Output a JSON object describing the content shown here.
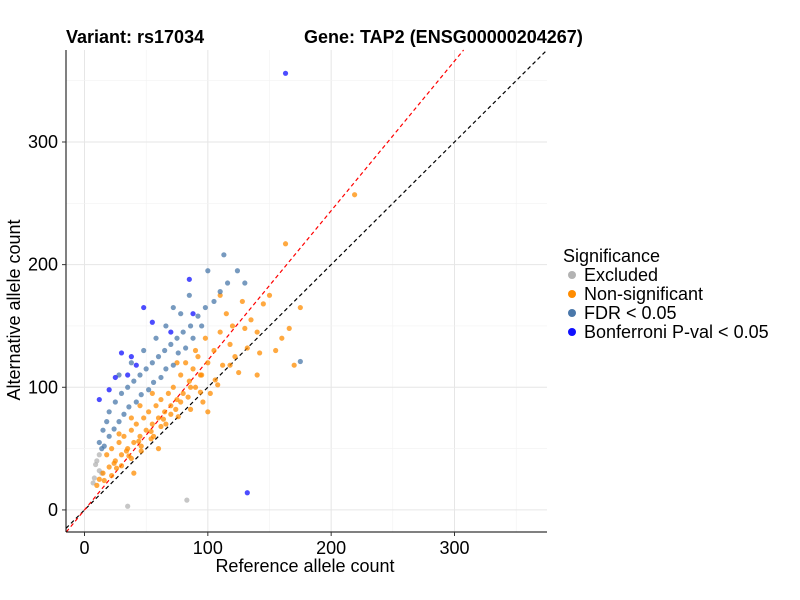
{
  "chart_data": {
    "type": "scatter",
    "title_left": "Variant: rs17034",
    "title_right": "Gene: TAP2 (ENSG00000204267)",
    "xlabel": "Reference allele count",
    "ylabel": "Alternative allele count",
    "xlim": [
      -15,
      375
    ],
    "ylim": [
      -18,
      375
    ],
    "xticks": [
      0,
      100,
      200,
      300
    ],
    "yticks": [
      0,
      100,
      200,
      300
    ],
    "grid": true,
    "reference_lines": [
      {
        "name": "identity",
        "slope": 1,
        "intercept": 0,
        "color": "#000000",
        "style": "dashed"
      },
      {
        "name": "fitted",
        "slope": 1.22,
        "intercept": 0,
        "color": "#ff0000",
        "style": "dashed"
      }
    ],
    "legend": {
      "title": "Significance",
      "position": "right",
      "entries": [
        {
          "label": "Excluded",
          "color": "#b3b3b3"
        },
        {
          "label": "Non-significant",
          "color": "#ff8c00"
        },
        {
          "label": "FDR < 0.05",
          "color": "#4a78aa"
        },
        {
          "label": "Bonferroni P-val < 0.05",
          "color": "#1010ff"
        }
      ]
    },
    "series": [
      {
        "name": "Excluded",
        "color": "#b3b3b3",
        "points": [
          [
            7,
            22
          ],
          [
            9,
            37
          ],
          [
            10,
            40
          ],
          [
            12,
            45
          ],
          [
            14,
            30
          ],
          [
            35,
            3
          ],
          [
            83,
            8
          ],
          [
            12,
            32
          ],
          [
            8,
            26
          ]
        ]
      },
      {
        "name": "Non-significant",
        "color": "#ff8c00",
        "points": [
          [
            219,
            257
          ],
          [
            163,
            217
          ],
          [
            166,
            148
          ],
          [
            170,
            118
          ],
          [
            145,
            168
          ],
          [
            130,
            148
          ],
          [
            140,
            145
          ],
          [
            135,
            155
          ],
          [
            128,
            170
          ],
          [
            120,
            150
          ],
          [
            115,
            160
          ],
          [
            118,
            135
          ],
          [
            110,
            145
          ],
          [
            122,
            125
          ],
          [
            105,
            130
          ],
          [
            100,
            120
          ],
          [
            98,
            140
          ],
          [
            95,
            110
          ],
          [
            92,
            125
          ],
          [
            90,
            100
          ],
          [
            88,
            115
          ],
          [
            85,
            105
          ],
          [
            82,
            120
          ],
          [
            80,
            95
          ],
          [
            78,
            110
          ],
          [
            75,
            90
          ],
          [
            72,
            100
          ],
          [
            70,
            85
          ],
          [
            68,
            95
          ],
          [
            65,
            80
          ],
          [
            62,
            90
          ],
          [
            60,
            75
          ],
          [
            58,
            85
          ],
          [
            55,
            70
          ],
          [
            52,
            80
          ],
          [
            50,
            65
          ],
          [
            48,
            75
          ],
          [
            45,
            60
          ],
          [
            42,
            70
          ],
          [
            40,
            55
          ],
          [
            38,
            65
          ],
          [
            35,
            50
          ],
          [
            32,
            60
          ],
          [
            30,
            45
          ],
          [
            28,
            55
          ],
          [
            25,
            40
          ],
          [
            22,
            50
          ],
          [
            20,
            35
          ],
          [
            18,
            45
          ],
          [
            15,
            30
          ],
          [
            12,
            25
          ],
          [
            10,
            20
          ],
          [
            150,
            175
          ],
          [
            155,
            130
          ],
          [
            142,
            128
          ],
          [
            125,
            112
          ],
          [
            112,
            118
          ],
          [
            108,
            102
          ],
          [
            102,
            95
          ],
          [
            96,
            88
          ],
          [
            94,
            96
          ],
          [
            86,
            82
          ],
          [
            84,
            92
          ],
          [
            76,
            76
          ],
          [
            74,
            82
          ],
          [
            66,
            70
          ],
          [
            64,
            74
          ],
          [
            56,
            60
          ],
          [
            54,
            64
          ],
          [
            46,
            52
          ],
          [
            44,
            56
          ],
          [
            36,
            44
          ],
          [
            34,
            48
          ],
          [
            26,
            34
          ],
          [
            24,
            38
          ],
          [
            16,
            24
          ],
          [
            40,
            30
          ],
          [
            60,
            50
          ],
          [
            100,
            80
          ],
          [
            140,
            110
          ],
          [
            175,
            165
          ],
          [
            90,
            130
          ],
          [
            110,
            175
          ],
          [
            75,
            120
          ],
          [
            55,
            95
          ],
          [
            45,
            85
          ],
          [
            38,
            75
          ],
          [
            28,
            62
          ],
          [
            160,
            140
          ],
          [
            132,
            132
          ],
          [
            118,
            118
          ],
          [
            106,
            106
          ],
          [
            94,
            110
          ],
          [
            86,
            100
          ],
          [
            78,
            88
          ],
          [
            70,
            78
          ],
          [
            62,
            68
          ],
          [
            54,
            58
          ],
          [
            46,
            48
          ],
          [
            38,
            42
          ],
          [
            30,
            36
          ],
          [
            22,
            28
          ]
        ]
      },
      {
        "name": "FDR < 0.05",
        "color": "#4a78aa",
        "points": [
          [
            113,
            208
          ],
          [
            124,
            195
          ],
          [
            116,
            185
          ],
          [
            110,
            178
          ],
          [
            105,
            170
          ],
          [
            98,
            165
          ],
          [
            92,
            158
          ],
          [
            86,
            150
          ],
          [
            80,
            145
          ],
          [
            75,
            140
          ],
          [
            70,
            135
          ],
          [
            65,
            130
          ],
          [
            60,
            125
          ],
          [
            55,
            120
          ],
          [
            50,
            115
          ],
          [
            45,
            110
          ],
          [
            40,
            105
          ],
          [
            35,
            100
          ],
          [
            30,
            95
          ],
          [
            25,
            88
          ],
          [
            20,
            80
          ],
          [
            18,
            72
          ],
          [
            15,
            65
          ],
          [
            12,
            55
          ],
          [
            14,
            50
          ],
          [
            175,
            121
          ],
          [
            95,
            150
          ],
          [
            88,
            140
          ],
          [
            82,
            132
          ],
          [
            76,
            128
          ],
          [
            72,
            118
          ],
          [
            66,
            115
          ],
          [
            62,
            108
          ],
          [
            56,
            104
          ],
          [
            52,
            98
          ],
          [
            46,
            94
          ],
          [
            42,
            88
          ],
          [
            36,
            84
          ],
          [
            32,
            78
          ],
          [
            28,
            72
          ],
          [
            24,
            66
          ],
          [
            20,
            60
          ],
          [
            16,
            52
          ],
          [
            58,
            140
          ],
          [
            48,
            130
          ],
          [
            38,
            120
          ],
          [
            28,
            110
          ],
          [
            66,
            150
          ],
          [
            78,
            160
          ],
          [
            100,
            195
          ],
          [
            130,
            185
          ],
          [
            85,
            175
          ],
          [
            72,
            165
          ]
        ]
      },
      {
        "name": "Bonferroni P-val < 0.05",
        "color": "#1010ff",
        "points": [
          [
            163,
            356
          ],
          [
            85,
            188
          ],
          [
            48,
            165
          ],
          [
            55,
            153
          ],
          [
            30,
            128
          ],
          [
            38,
            125
          ],
          [
            42,
            118
          ],
          [
            35,
            110
          ],
          [
            25,
            108
          ],
          [
            20,
            98
          ],
          [
            12,
            90
          ],
          [
            70,
            145
          ],
          [
            88,
            160
          ],
          [
            132,
            14
          ]
        ]
      }
    ]
  }
}
